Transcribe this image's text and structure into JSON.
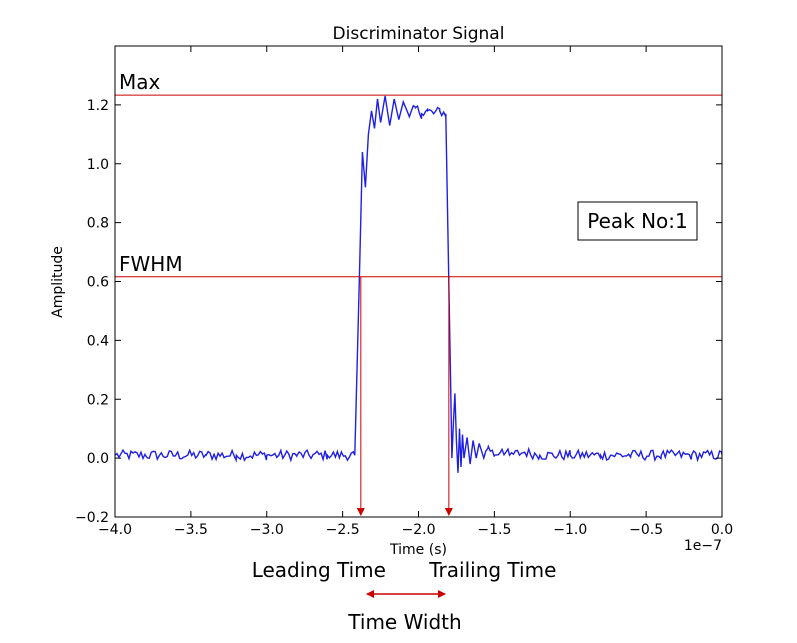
{
  "chart_data": {
    "type": "line",
    "title": "Discriminator Signal",
    "xlabel": "Time (s)",
    "ylabel": "Amplitude",
    "x_offset_label": "1e−7",
    "xlim": [
      -4e-07,
      0.0
    ],
    "ylim": [
      -0.2,
      1.4
    ],
    "grid": false,
    "x_ticks": [
      -4.0,
      -3.5,
      -3.0,
      -2.5,
      -2.0,
      -1.5,
      -1.0,
      -0.5,
      0.0
    ],
    "x_tick_labels": [
      "−4.0",
      "−3.5",
      "−3.0",
      "−2.5",
      "−2.0",
      "−1.5",
      "−1.0",
      "−0.5",
      "0.0"
    ],
    "y_ticks": [
      -0.2,
      0.0,
      0.2,
      0.4,
      0.6,
      0.8,
      1.0,
      1.2
    ],
    "y_tick_labels": [
      "−0.2",
      "0.0",
      "0.2",
      "0.4",
      "0.6",
      "0.8",
      "1.0",
      "1.2"
    ],
    "series": [
      {
        "color": "#1f1fe6",
        "x": [
          -4e-07,
          -3.8e-07,
          -3.6e-07,
          -3.4e-07,
          -3.2e-07,
          -3e-07,
          -2.8e-07,
          -2.6e-07,
          -2.42e-07,
          -2.39e-07,
          -2.37e-07,
          -2.35e-07,
          -2.33e-07,
          -2.31e-07,
          -2.29e-07,
          -2.27e-07,
          -2.25e-07,
          -2.22e-07,
          -2.19e-07,
          -2.16e-07,
          -2.13e-07,
          -2.1e-07,
          -2.06e-07,
          -2.02e-07,
          -1.98e-07,
          -1.94e-07,
          -1.9e-07,
          -1.86e-07,
          -1.82e-07,
          -1.8e-07,
          -1.79e-07,
          -1.78e-07,
          -1.77e-07,
          -1.76e-07,
          -1.75e-07,
          -1.74e-07,
          -1.73e-07,
          -1.72e-07,
          -1.71e-07,
          -1.7e-07,
          -1.68e-07,
          -1.66e-07,
          -1.64e-07,
          -1.62e-07,
          -1.6e-07,
          -1.57e-07,
          -1.54e-07,
          -1.5e-07,
          -1.45e-07,
          -1.4e-07,
          -1.3e-07,
          -1.2e-07,
          -1e-07,
          -8e-08,
          -6e-08,
          -4e-08,
          -2e-08,
          0.0
        ],
        "y": [
          0.01,
          0.01,
          0.01,
          0.01,
          0.01,
          0.01,
          0.01,
          0.01,
          0.01,
          0.6,
          1.04,
          0.92,
          1.1,
          1.18,
          1.12,
          1.22,
          1.14,
          1.23,
          1.13,
          1.22,
          1.15,
          1.21,
          1.16,
          1.19,
          1.17,
          1.18,
          1.17,
          1.18,
          1.17,
          0.6,
          0.3,
          0.0,
          0.12,
          0.22,
          0.06,
          -0.05,
          0.1,
          -0.03,
          0.08,
          0.0,
          0.07,
          -0.02,
          0.06,
          0.0,
          0.05,
          0.0,
          0.04,
          0.01,
          0.03,
          0.01,
          0.02,
          0.01,
          0.01,
          0.01,
          0.01,
          0.01,
          0.01,
          0.01
        ]
      }
    ],
    "reference_lines": [
      {
        "label": "Max",
        "y": 1.233,
        "color": "#cc0000"
      },
      {
        "label": "FWHM",
        "y": 0.616,
        "color": "#cc0000"
      }
    ],
    "markers": [
      {
        "label": "Leading Time",
        "x": -2.38e-07,
        "color": "#cc0000"
      },
      {
        "label": "Trailing Time",
        "x": -1.8e-07,
        "color": "#cc0000"
      }
    ],
    "span_label": "Time Width",
    "annotation_box": "Peak No:1"
  }
}
